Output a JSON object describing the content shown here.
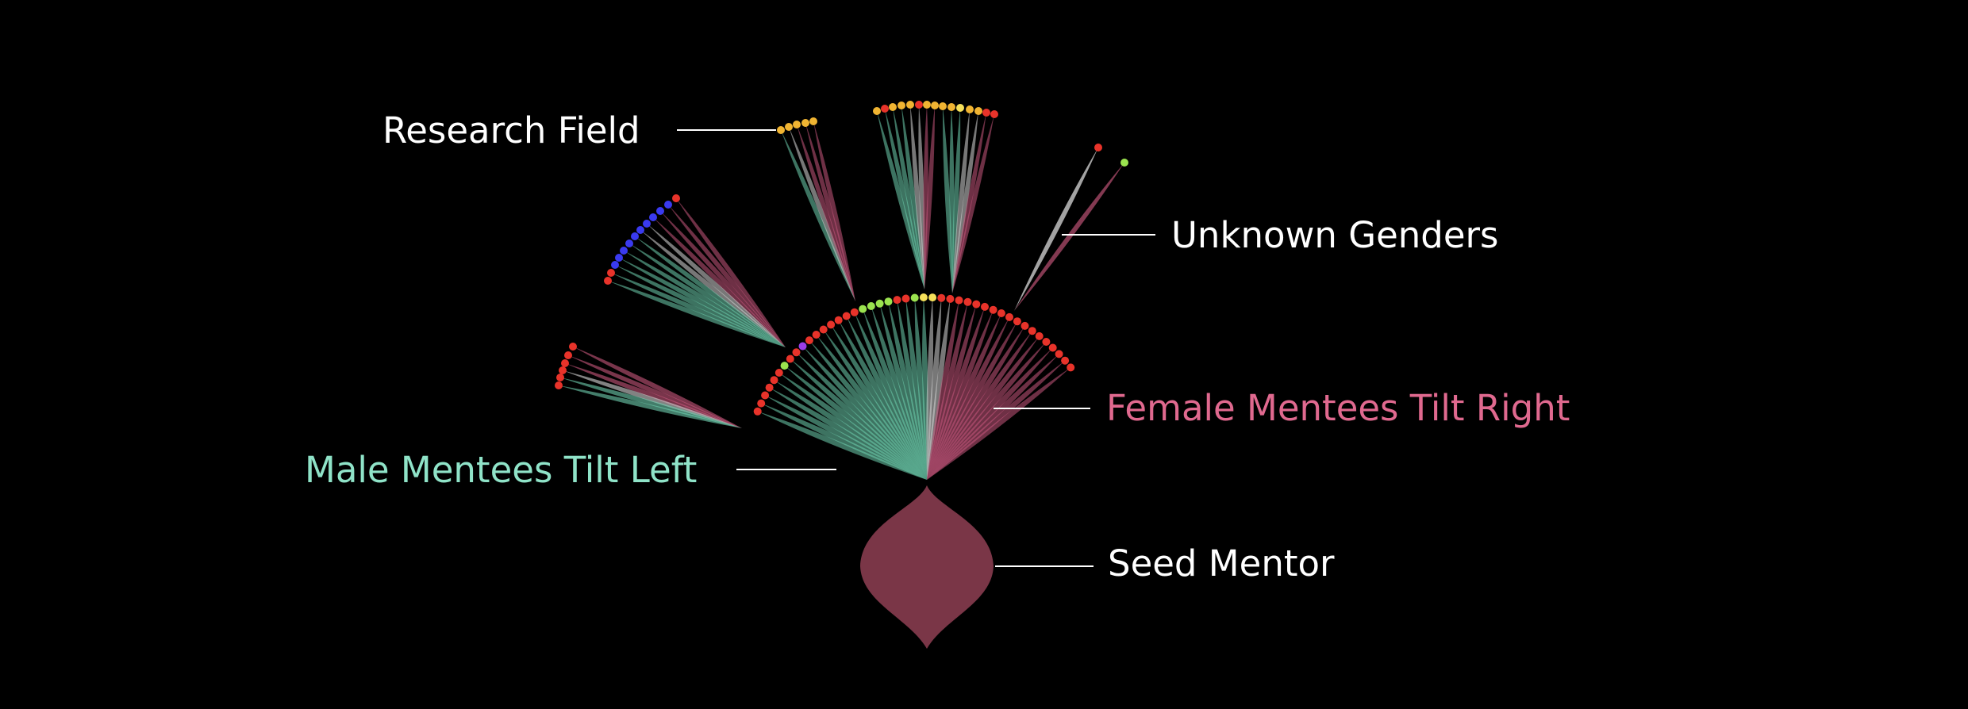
{
  "annotations": {
    "research_field": "Research Field",
    "unknown_genders": "Unknown Genders",
    "female_tilt": "Female Mentees Tilt Right",
    "male_tilt": "Male Mentees Tilt Left",
    "seed_mentor": "Seed Mentor"
  },
  "colors": {
    "background": "#000000",
    "male": "#6fd1b0",
    "female": "#c9587d",
    "unknown": "#d9d9d9",
    "seed_mentor": "#7a3647",
    "label_text": "#ffffff",
    "label_male": "#8fe3c8",
    "label_female": "#e0698f",
    "field_palette": [
      "#e8332a",
      "#f0b432",
      "#f6e05a",
      "#9be34f",
      "#3a3af0",
      "#9a3de8"
    ]
  }
}
